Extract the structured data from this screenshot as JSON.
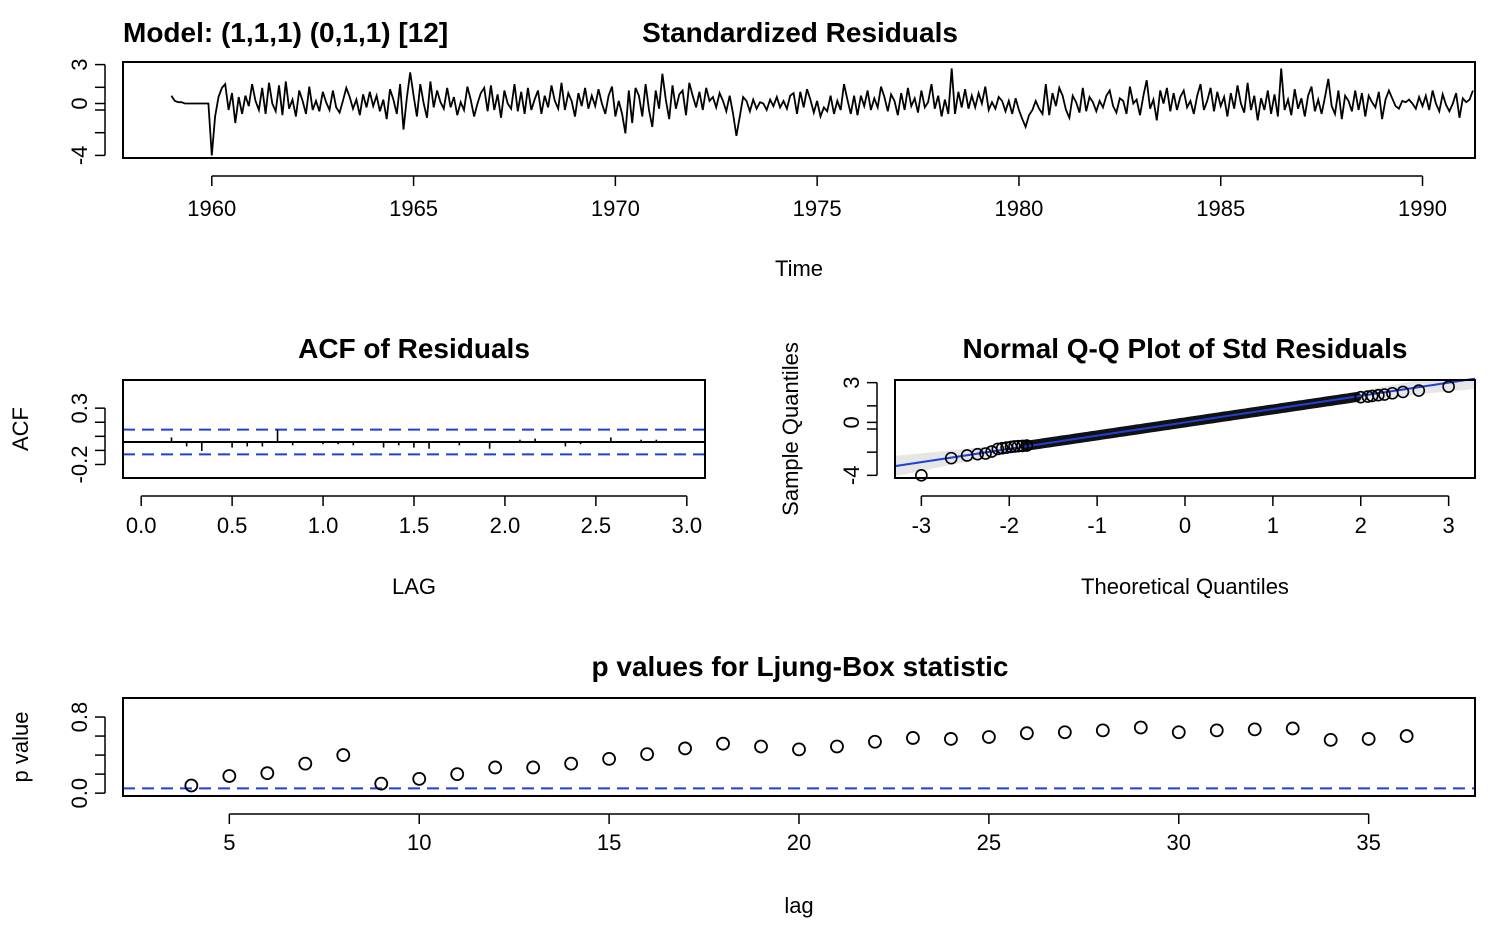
{
  "model_label": "Model: (1,1,1) (0,1,1) [12]",
  "chart_data": [
    {
      "type": "line",
      "title": "Standardized Residuals",
      "xlabel": "Time",
      "ylabel": "",
      "xlim": [
        1957.8,
        1991.3
      ],
      "ylim": [
        -4.2,
        3.2
      ],
      "xticks": [
        1960,
        1965,
        1970,
        1975,
        1980,
        1985,
        1990
      ],
      "xtick_labels": [
        "1960",
        "1965",
        "1970",
        "1975",
        "1980",
        "1985",
        "1990"
      ],
      "yticks": [
        -4,
        0,
        3
      ],
      "ytick_labels": [
        "-4",
        "0",
        "3"
      ],
      "x_start": 1959.0,
      "x_step": 0.08333,
      "values": [
        0.6,
        0.2,
        0.1,
        0.1,
        0.0,
        0.0,
        0.0,
        0.0,
        0.0,
        0.0,
        0.0,
        0.0,
        -4.0,
        -1.0,
        0.5,
        1.2,
        1.5,
        -0.5,
        0.8,
        -1.5,
        0.5,
        -0.8,
        0.6,
        -0.2,
        1.5,
        0.2,
        -0.5,
        1.2,
        -0.8,
        1.6,
        0.0,
        -0.6,
        1.4,
        -0.9,
        1.7,
        -0.4,
        0.3,
        -1.0,
        1.0,
        0.2,
        -0.8,
        1.3,
        -0.5,
        0.2,
        -0.6,
        0.9,
        0.1,
        -0.5,
        1.0,
        -0.3,
        -0.7,
        0.2,
        1.2,
        0.5,
        -0.4,
        0.3,
        -0.9,
        0.7,
        -0.3,
        0.9,
        -0.2,
        0.6,
        -0.6,
        0.3,
        -1.2,
        1.1,
        0.3,
        -0.8,
        1.5,
        -2.0,
        0.4,
        2.4,
        0.6,
        -1.0,
        1.5,
        0.0,
        -1.1,
        1.7,
        -0.3,
        1.0,
        0.1,
        -0.4,
        1.2,
        -0.3,
        0.5,
        -0.9,
        0.1,
        -0.5,
        1.3,
        0.3,
        -1.0,
        0.0,
        0.8,
        1.2,
        -0.6,
        1.4,
        -0.5,
        0.7,
        -1.1,
        1.0,
        0.0,
        -0.4,
        1.5,
        -0.6,
        0.9,
        -0.8,
        1.2,
        -0.5,
        0.3,
        1.0,
        -0.8,
        0.6,
        -0.3,
        1.4,
        0.2,
        -0.4,
        1.6,
        -0.5,
        0.8,
        0.2,
        -1.0,
        0.8,
        -0.2,
        1.2,
        -0.4,
        0.6,
        -0.2,
        1.1,
        0.0,
        -0.8,
        0.6,
        1.3,
        -1.0,
        0.2,
        -0.8,
        -2.3,
        1.0,
        -1.5,
        1.2,
        0.6,
        -1.0,
        1.5,
        -0.5,
        -1.8,
        1.0,
        -0.4,
        2.3,
        0.3,
        -1.2,
        1.4,
        -0.4,
        0.7,
        1.0,
        -0.9,
        1.6,
        0.6,
        -0.3,
        0.9,
        -0.5,
        1.2,
        0.2,
        0.5,
        -0.3,
        0.8,
        0.2,
        -0.6,
        0.6,
        -0.8,
        -2.5,
        -1.0,
        0.5,
        0.2,
        -0.6,
        0.3,
        -0.4,
        0.1,
        0.0,
        -0.5,
        0.3,
        -0.2,
        0.5,
        -0.3,
        0.2,
        -0.4,
        0.6,
        0.8,
        -0.8,
        0.9,
        -0.3,
        1.1,
        0.3,
        -0.7,
        0.2,
        -1.0,
        -0.3,
        -0.6,
        0.6,
        -0.8,
        0.2,
        -0.5,
        1.5,
        0.3,
        -0.8,
        0.6,
        -0.9,
        0.6,
        -0.2,
        1.0,
        -0.5,
        0.4,
        -0.3,
        1.3,
        0.5,
        -0.6,
        0.7,
        0.2,
        -0.9,
        0.8,
        -0.5,
        1.2,
        -0.2,
        0.4,
        -0.7,
        1.0,
        -0.3,
        0.1,
        1.5,
        -0.4,
        0.6,
        -1.0,
        0.3,
        -0.8,
        2.7,
        -0.8,
        0.9,
        -0.3,
        1.1,
        -0.4,
        0.6,
        -0.3,
        0.8,
        0.0,
        1.3,
        -0.5,
        0.1,
        -0.4,
        0.5,
        0.2,
        -0.6,
        0.2,
        -0.8,
        0.4,
        -0.5,
        -1.2,
        -1.8,
        -0.9,
        -0.5,
        0.2,
        -0.4,
        -0.8,
        1.5,
        -0.9,
        0.8,
        -0.2,
        1.2,
        0.6,
        -0.5,
        -1.1,
        0.6,
        0.1,
        -0.7,
        1.2,
        -0.6,
        0.5,
        0.1,
        -0.6,
        0.2,
        -0.3,
        0.6,
        1.0,
        -0.2,
        -0.7,
        0.4,
        0.2,
        -0.8,
        1.3,
        0.0,
        0.3,
        -0.9,
        0.6,
        1.8,
        -0.4,
        0.3,
        -1.3,
        1.0,
        0.0,
        1.2,
        -0.6,
        0.8,
        -0.5,
        0.5,
        1.0,
        -0.3,
        0.2,
        -0.8,
        0.6,
        1.5,
        -0.5,
        0.2,
        1.2,
        -0.6,
        0.9,
        -0.2,
        0.5,
        -1.0,
        0.8,
        -0.4,
        1.4,
        0.0,
        -0.7,
        1.6,
        -0.5,
        0.6,
        -1.3,
        0.4,
        -0.5,
        1.0,
        -0.8,
        0.7,
        -1.0,
        2.7,
        -0.5,
        0.3,
        -0.9,
        1.1,
        -0.4,
        0.4,
        -1.0,
        0.6,
        1.3,
        -0.6,
        0.3,
        -0.8,
        0.5,
        1.9,
        -0.2,
        -0.8,
        1.0,
        -1.2,
        0.6,
        0.2,
        -0.6,
        1.0,
        -0.5,
        0.8,
        -1.0,
        0.6,
        0.1,
        -0.3,
        0.9,
        -1.2,
        0.3,
        1.0,
        0.4,
        -0.2,
        -0.4,
        0.2,
        0.1,
        0.3,
        0.0,
        -0.4,
        0.5,
        -0.2,
        0.6,
        -0.5,
        1.0,
        0.0,
        -0.6,
        0.7,
        -0.1,
        -0.6,
        0.0,
        0.8,
        -1.1,
        0.4,
        0.1,
        0.3,
        1.0
      ]
    },
    {
      "type": "bar",
      "title": "ACF of Residuals",
      "xlabel": "LAG",
      "ylabel": "ACF",
      "xlim": [
        -0.1,
        3.1
      ],
      "ylim": [
        -0.32,
        0.55
      ],
      "xticks": [
        0.0,
        0.5,
        1.0,
        1.5,
        2.0,
        2.5,
        3.0
      ],
      "xtick_labels": [
        "0.0",
        "0.5",
        "1.0",
        "1.5",
        "2.0",
        "2.5",
        "3.0"
      ],
      "yticks": [
        -0.2,
        0.3
      ],
      "ytick_labels": [
        "-0.2",
        "0.3"
      ],
      "confidence_bands": [
        0.11,
        -0.11
      ],
      "lag_start": 0.0833,
      "lag_step": 0.0833,
      "values": [
        0.0,
        0.04,
        -0.04,
        -0.08,
        0.0,
        -0.05,
        -0.04,
        -0.04,
        0.11,
        -0.03,
        0.0,
        -0.02,
        -0.02,
        -0.03,
        0.0,
        -0.05,
        -0.03,
        -0.05,
        -0.06,
        0.0,
        -0.03,
        0.0,
        -0.06,
        0.0,
        0.02,
        0.03,
        0.0,
        -0.04,
        -0.02,
        0.0,
        0.04,
        0.0,
        0.02,
        0.02,
        0.0,
        0.0
      ]
    },
    {
      "type": "scatter",
      "title": "Normal Q-Q Plot of Std Residuals",
      "xlabel": "Theoretical Quantiles",
      "ylabel": "Sample Quantiles",
      "xlim": [
        -3.3,
        3.3
      ],
      "ylim": [
        -4.2,
        3.2
      ],
      "xticks": [
        -3,
        -2,
        -1,
        0,
        1,
        2,
        3
      ],
      "xtick_labels": [
        "-3",
        "-2",
        "-1",
        "0",
        "1",
        "2",
        "3"
      ],
      "yticks": [
        -4,
        0,
        3
      ],
      "ytick_labels": [
        "-4",
        "0",
        "3"
      ],
      "reference_line": {
        "slope": 1.0,
        "intercept": 0.0
      },
      "points": [
        [
          -3.0,
          -4.0
        ],
        [
          -2.66,
          -2.7
        ],
        [
          -2.48,
          -2.5
        ],
        [
          -2.36,
          -2.4
        ],
        [
          -2.27,
          -2.35
        ],
        [
          -2.2,
          -2.2
        ],
        [
          -2.13,
          -2.0
        ],
        [
          -2.08,
          -1.95
        ],
        [
          -2.03,
          -1.9
        ],
        [
          -1.98,
          -1.85
        ],
        [
          -1.94,
          -1.82
        ],
        [
          -1.9,
          -1.8
        ],
        [
          -1.85,
          -1.78
        ],
        [
          -1.8,
          -1.75
        ],
        [
          2.0,
          1.9
        ],
        [
          2.08,
          1.95
        ],
        [
          2.13,
          2.0
        ],
        [
          2.2,
          2.05
        ],
        [
          2.27,
          2.1
        ],
        [
          2.36,
          2.2
        ],
        [
          2.48,
          2.3
        ],
        [
          2.66,
          2.4
        ],
        [
          3.0,
          2.7
        ]
      ]
    },
    {
      "type": "scatter",
      "title": "p values for Ljung-Box statistic",
      "xlabel": "lag",
      "ylabel": "p value",
      "xlim": [
        2.2,
        37.8
      ],
      "ylim": [
        -0.03,
        1.0
      ],
      "xticks": [
        5,
        10,
        15,
        20,
        25,
        30,
        35
      ],
      "xtick_labels": [
        "5",
        "10",
        "15",
        "20",
        "25",
        "30",
        "35"
      ],
      "yticks": [
        0.0,
        0.8
      ],
      "ytick_labels": [
        "0.0",
        "0.8"
      ],
      "significance_line": 0.05,
      "x": [
        4,
        5,
        6,
        7,
        8,
        9,
        10,
        11,
        12,
        13,
        14,
        15,
        16,
        17,
        18,
        19,
        20,
        21,
        22,
        23,
        24,
        25,
        26,
        27,
        28,
        29,
        30,
        31,
        32,
        33,
        34,
        35,
        36
      ],
      "values": [
        0.08,
        0.18,
        0.21,
        0.31,
        0.4,
        0.1,
        0.15,
        0.2,
        0.27,
        0.27,
        0.31,
        0.36,
        0.41,
        0.47,
        0.52,
        0.49,
        0.46,
        0.49,
        0.54,
        0.58,
        0.57,
        0.59,
        0.63,
        0.64,
        0.66,
        0.69,
        0.64,
        0.66,
        0.67,
        0.68,
        0.56,
        0.57,
        0.6
      ]
    }
  ],
  "colors": {
    "line": "#000000",
    "reference": "#1f3fd8",
    "band": "#e6e6e6"
  }
}
